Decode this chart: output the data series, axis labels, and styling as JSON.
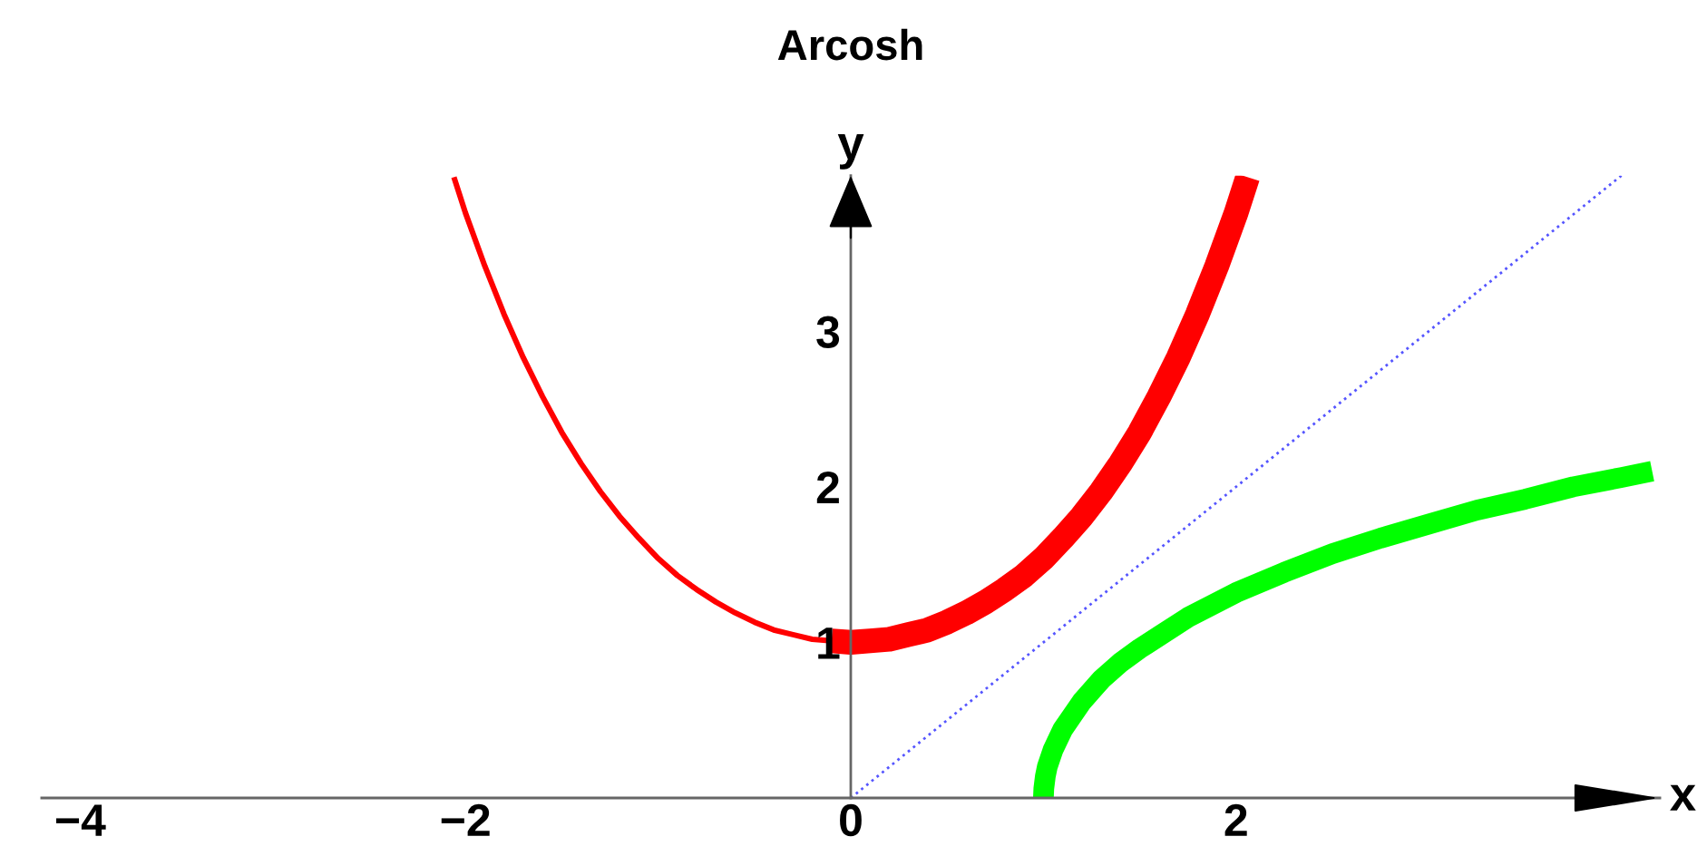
{
  "chart_data": {
    "type": "line",
    "title": "Arcosh",
    "xlabel": "x",
    "ylabel": "y",
    "xlim": [
      -4.2,
      4.2
    ],
    "ylim": [
      0,
      4
    ],
    "xticks": [
      {
        "value": -4,
        "label": "−4"
      },
      {
        "value": -2,
        "label": "−2"
      },
      0,
      2
    ],
    "yticks": [
      1,
      2,
      3
    ],
    "series": [
      {
        "color": "#ff0000",
        "line_style": "solid",
        "x": [
          -2.06,
          -2.0,
          -1.9,
          -1.8,
          -1.7,
          -1.6,
          -1.5,
          -1.4,
          -1.3,
          -1.2,
          -1.1,
          -1.0,
          -0.9,
          -0.8,
          -0.7,
          -0.6,
          -0.5,
          -0.4,
          -0.3,
          -0.2,
          -0.1
        ],
        "values": [
          3.99,
          3.76,
          3.42,
          3.11,
          2.83,
          2.58,
          2.35,
          2.15,
          1.97,
          1.81,
          1.67,
          1.54,
          1.43,
          1.34,
          1.26,
          1.19,
          1.13,
          1.08,
          1.05,
          1.02,
          1.01
        ]
      },
      {
        "color": "#ff0000",
        "line_style": "solid",
        "x": [
          -0.1,
          0,
          0.1,
          0.2,
          0.3,
          0.4,
          0.5,
          0.6,
          0.7,
          0.8,
          0.9,
          1.0,
          1.1,
          1.2,
          1.3,
          1.4,
          1.5,
          1.6,
          1.7,
          1.8,
          1.9,
          2.0,
          2.06
        ],
        "values": [
          1.01,
          1.0,
          1.01,
          1.02,
          1.05,
          1.08,
          1.13,
          1.19,
          1.26,
          1.34,
          1.43,
          1.54,
          1.67,
          1.81,
          1.97,
          2.15,
          2.35,
          2.58,
          2.83,
          3.11,
          3.42,
          3.76,
          3.99
        ]
      },
      {
        "color": "#00ff00",
        "line_style": "solid",
        "x": [
          1,
          1.002,
          1.01,
          1.02,
          1.05,
          1.1,
          1.2,
          1.3,
          1.4,
          1.5,
          1.75,
          2,
          2.25,
          2.5,
          2.75,
          3,
          3.25,
          3.5,
          3.75,
          4,
          4.16
        ],
        "values": [
          0,
          0.06,
          0.14,
          0.2,
          0.31,
          0.44,
          0.62,
          0.76,
          0.87,
          0.96,
          1.16,
          1.32,
          1.45,
          1.57,
          1.67,
          1.76,
          1.85,
          1.92,
          2.0,
          2.06,
          2.1
        ]
      },
      {
        "color": "#5555ff",
        "line_style": "dotted",
        "x": [
          0,
          4
        ],
        "values": [
          0,
          4
        ]
      }
    ]
  }
}
